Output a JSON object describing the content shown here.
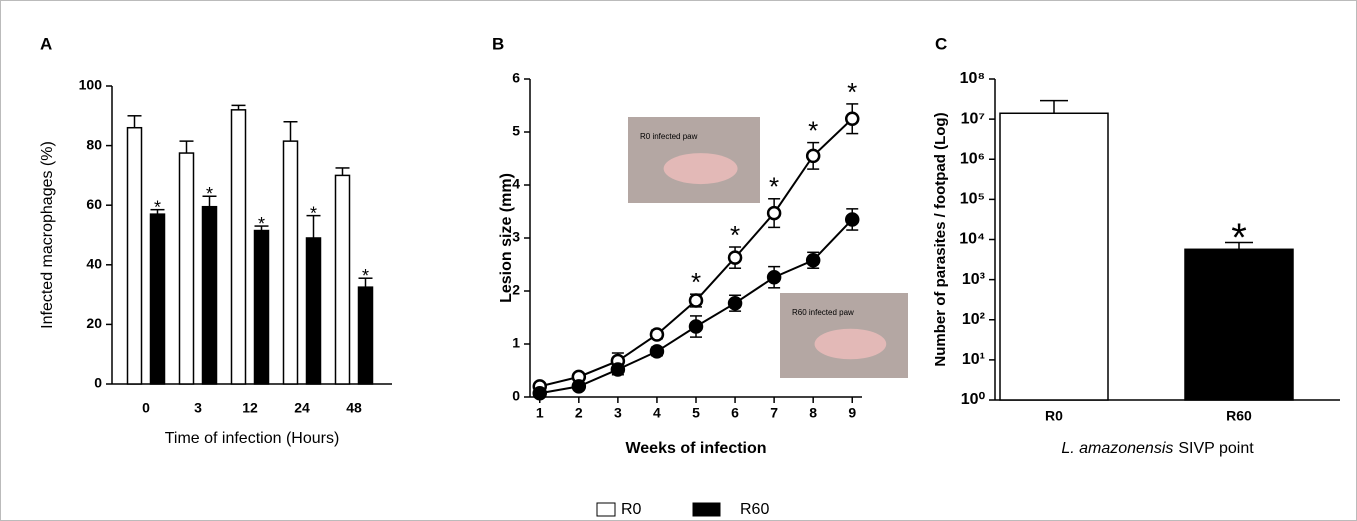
{
  "chart_data": [
    {
      "type": "bar",
      "panel_label": "A",
      "ylabel": "Infected macrophages (%)",
      "xlabel": "Time of infection (Hours)",
      "categories": [
        "0",
        "3",
        "12",
        "24",
        "48"
      ],
      "series": [
        {
          "name": "R0",
          "color": "#ffffff",
          "values": [
            86,
            77.5,
            92,
            81.5,
            70
          ],
          "errors": [
            4,
            4,
            1.5,
            6.5,
            2.5
          ],
          "significance": [
            null,
            null,
            null,
            null,
            null
          ]
        },
        {
          "name": "R60",
          "color": "#000000",
          "values": [
            57,
            59.5,
            51.5,
            49,
            32.5
          ],
          "errors": [
            1.5,
            3.5,
            1.5,
            7.5,
            3
          ],
          "significance": [
            "*",
            "*",
            "*",
            "*",
            "*"
          ]
        }
      ],
      "ylim": [
        0,
        100
      ],
      "yticks": [
        0,
        20,
        40,
        60,
        80,
        100
      ]
    },
    {
      "type": "line",
      "panel_label": "B",
      "ylabel": "Lesion size (mm)",
      "xlabel": "Weeks of infection",
      "x": [
        1,
        2,
        3,
        4,
        5,
        6,
        7,
        8,
        9
      ],
      "series": [
        {
          "name": "R0",
          "color": "#ffffff",
          "values": [
            0.2,
            0.38,
            0.68,
            1.18,
            1.82,
            2.63,
            3.47,
            4.55,
            5.25
          ],
          "errors": [
            0.05,
            0.05,
            0.15,
            0.08,
            0.12,
            0.2,
            0.27,
            0.25,
            0.28
          ],
          "significance": [
            null,
            null,
            null,
            null,
            "*",
            "*",
            "*",
            "*",
            "*"
          ]
        },
        {
          "name": "R60",
          "color": "#000000",
          "values": [
            0.07,
            0.2,
            0.52,
            0.86,
            1.33,
            1.77,
            2.26,
            2.58,
            3.35
          ],
          "errors": [
            0.05,
            0.05,
            0.1,
            0.08,
            0.2,
            0.15,
            0.2,
            0.15,
            0.2
          ],
          "significance": [
            null,
            null,
            null,
            null,
            null,
            null,
            null,
            null,
            null
          ]
        }
      ],
      "xlim": [
        0.75,
        9.25
      ],
      "xticks": [
        1,
        2,
        3,
        4,
        5,
        6,
        7,
        8,
        9
      ],
      "ylim": [
        0,
        6
      ],
      "yticks": [
        0,
        1,
        2,
        3,
        4,
        5,
        6
      ],
      "insets": [
        {
          "label": "R0 infected paw"
        },
        {
          "label": "R60 infected paw"
        }
      ]
    },
    {
      "type": "bar",
      "panel_label": "C",
      "ylabel": "Number of parasites / footpad (Log)",
      "xlabel_species": "L. amazonensis",
      "xlabel": "SIVP point",
      "categories": [
        "R0",
        "R60"
      ],
      "values": [
        14000000,
        5700
      ],
      "errors": [
        15000000,
        2700
      ],
      "colors": [
        "#ffffff",
        "#000000"
      ],
      "significance": [
        null,
        "*"
      ],
      "log_scale": true,
      "ylim": [
        1,
        100000000
      ],
      "yticks": [
        {
          "value": 1,
          "label": "10⁰"
        },
        {
          "value": 10,
          "label": "10¹"
        },
        {
          "value": 100,
          "label": "10²"
        },
        {
          "value": 1000,
          "label": "10³"
        },
        {
          "value": 10000,
          "label": "10⁴"
        },
        {
          "value": 100000,
          "label": "10⁵"
        },
        {
          "value": 1000000,
          "label": "10⁶"
        },
        {
          "value": 10000000,
          "label": "10⁷"
        },
        {
          "value": 100000000,
          "label": "10⁸"
        }
      ]
    }
  ]
}
